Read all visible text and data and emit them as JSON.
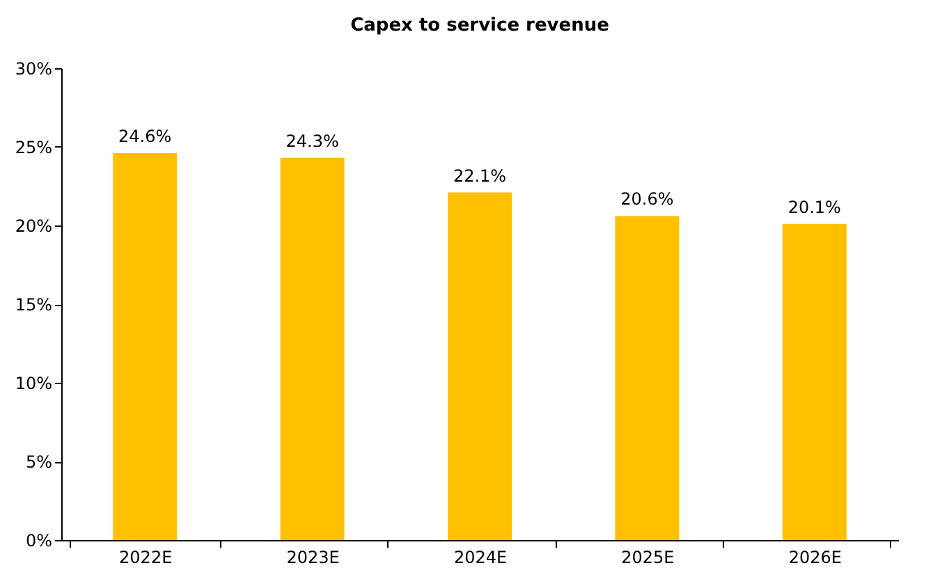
{
  "chart_data": {
    "type": "bar",
    "title": "Capex to service revenue",
    "categories": [
      "2022E",
      "2023E",
      "2024E",
      "2025E",
      "2026E"
    ],
    "values": [
      24.6,
      24.3,
      22.1,
      20.6,
      20.1
    ],
    "value_labels": [
      "24.6%",
      "24.3%",
      "22.1%",
      "20.6%",
      "20.1%"
    ],
    "color": "#ffc000",
    "ylim": [
      0,
      30
    ],
    "yticks": [
      {
        "value": 0,
        "label": "0%"
      },
      {
        "value": 5,
        "label": "5%"
      },
      {
        "value": 10,
        "label": "10%"
      },
      {
        "value": 15,
        "label": "15%"
      },
      {
        "value": 20,
        "label": "20%"
      },
      {
        "value": 25,
        "label": "25%"
      },
      {
        "value": 30,
        "label": "30%"
      }
    ],
    "grid": false
  }
}
